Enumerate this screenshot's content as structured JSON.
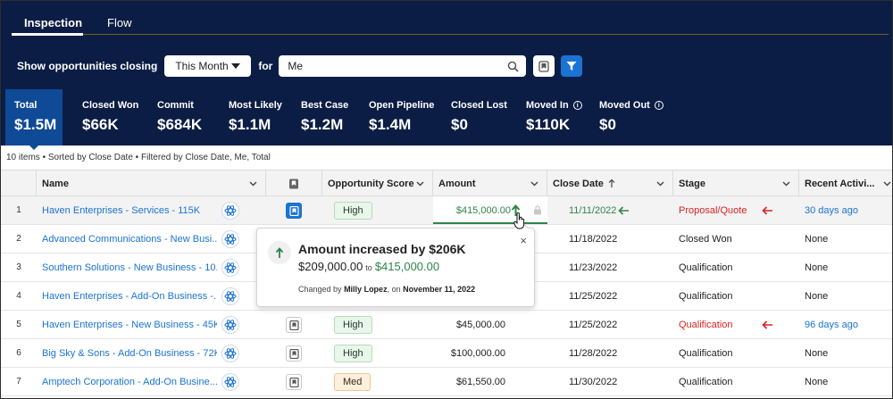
{
  "tabs": [
    {
      "label": "Inspection",
      "active": true
    },
    {
      "label": "Flow",
      "active": false
    }
  ],
  "filters": {
    "label": "Show opportunities closing",
    "period": "This Month",
    "for_label": "for",
    "search_value": "Me"
  },
  "metrics": [
    {
      "label": "Total",
      "value": "$1.5M",
      "info": false
    },
    {
      "label": "Closed Won",
      "value": "$66K",
      "info": false
    },
    {
      "label": "Commit",
      "value": "$684K",
      "info": false
    },
    {
      "label": "Most Likely",
      "value": "$1.1M",
      "info": false
    },
    {
      "label": "Best Case",
      "value": "$1.2M",
      "info": false
    },
    {
      "label": "Open Pipeline",
      "value": "$1.4M",
      "info": false
    },
    {
      "label": "Closed Lost",
      "value": "$0",
      "info": false
    },
    {
      "label": "Moved In",
      "value": "$110K",
      "info": true
    },
    {
      "label": "Moved Out",
      "value": "$0",
      "info": true
    }
  ],
  "summary": "10 items • Sorted by Close Date • Filtered by Close Date, Me, Total",
  "columns": {
    "name": "Name",
    "score": "Opportunity Score",
    "amount": "Amount",
    "close_date": "Close Date",
    "stage": "Stage",
    "recent": "Recent Activi..."
  },
  "rows": [
    {
      "num": "1",
      "name": "Haven Enterprises - Services - 115K",
      "score": "High",
      "amount": "$415,000.00",
      "close_date": "11/11/2022",
      "stage": "Proposal/Quote",
      "recent": "30 days ago"
    },
    {
      "num": "2",
      "name": "Advanced Communications - New Busi...",
      "score": "",
      "amount": "",
      "close_date": "11/18/2022",
      "stage": "Closed Won",
      "recent": "None"
    },
    {
      "num": "3",
      "name": "Southern Solutions - New Business - 10...",
      "score": "",
      "amount": "",
      "close_date": "11/23/2022",
      "stage": "Qualification",
      "recent": "None"
    },
    {
      "num": "4",
      "name": "Haven Enterprises - Add-On Business -...",
      "score": "",
      "amount": "",
      "close_date": "11/25/2022",
      "stage": "Qualification",
      "recent": "None"
    },
    {
      "num": "5",
      "name": "Haven Enterprises - New Business - 45K",
      "score": "High",
      "amount": "$45,000.00",
      "close_date": "11/25/2022",
      "stage": "Qualification",
      "recent": "96 days ago"
    },
    {
      "num": "6",
      "name": "Big Sky & Sons - Add-On Business - 72K",
      "score": "High",
      "amount": "$100,000.00",
      "close_date": "11/28/2022",
      "stage": "Qualification",
      "recent": "None"
    },
    {
      "num": "7",
      "name": "Amptech Corporation - Add-On Busine...",
      "score": "Med",
      "amount": "$61,550.00",
      "close_date": "11/30/2022",
      "stage": "Qualification",
      "recent": "None"
    }
  ],
  "popover": {
    "title": "Amount increased by $206K",
    "from": "$209,000.00",
    "to_label": "to",
    "to": "$415,000.00",
    "changed_by_label": "Changed by",
    "changed_by": "Milly Lopez",
    "on_label": ", on",
    "date": "November 11, 2022",
    "close": "×"
  },
  "colors": {
    "header_bg": "#0b1d44",
    "total_bg": "#0e4a96",
    "link": "#1b73d3",
    "positive": "#2e844a",
    "negative": "#d22222"
  }
}
